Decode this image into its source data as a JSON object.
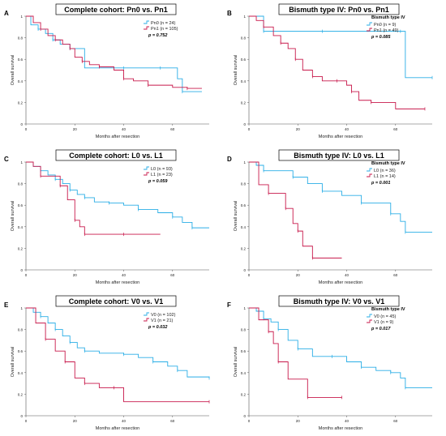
{
  "figure": {
    "ylabel": "Overall survival",
    "xlabel": "Months after resection",
    "colors": {
      "group0": "#2aaee6",
      "group1": "#c8194b"
    }
  },
  "chart_data": [
    {
      "type": "line",
      "panel": "A",
      "title": "Complete cohort: Pn0 vs. Pn1",
      "legend_title": "",
      "xlabel": "Months after resection",
      "ylabel": "Overall survival",
      "xlim": [
        0,
        75
      ],
      "ylim": [
        0,
        1.0
      ],
      "xticks": [
        0,
        20,
        40,
        60
      ],
      "yticks": [
        0.0,
        0.2,
        0.4,
        0.6,
        0.8,
        1.0
      ],
      "p_value": "p = 0.752",
      "series": [
        {
          "name": "Pn0 (n = 24)",
          "color": "#2aaee6",
          "x": [
            0,
            2,
            5,
            8,
            11,
            14,
            18,
            24,
            40,
            48,
            55,
            62,
            64,
            72
          ],
          "y": [
            1.0,
            0.92,
            0.88,
            0.84,
            0.78,
            0.74,
            0.7,
            0.52,
            0.52,
            0.52,
            0.52,
            0.42,
            0.3,
            0.3
          ]
        },
        {
          "name": "Pn1 (n = 105)",
          "color": "#c8194b",
          "x": [
            0,
            3,
            6,
            9,
            12,
            15,
            18,
            20,
            23,
            26,
            30,
            36,
            40,
            44,
            50,
            60,
            66,
            72
          ],
          "y": [
            1.0,
            0.94,
            0.88,
            0.82,
            0.78,
            0.74,
            0.7,
            0.62,
            0.58,
            0.55,
            0.53,
            0.5,
            0.42,
            0.4,
            0.36,
            0.34,
            0.33,
            0.33
          ]
        }
      ]
    },
    {
      "type": "line",
      "panel": "B",
      "title": "Bismuth type IV: Pn0 vs. Pn1",
      "legend_title": "Bismuth type IV",
      "xlabel": "Months after resection",
      "ylabel": "Overall survival",
      "xlim": [
        0,
        75
      ],
      "ylim": [
        0,
        1.0
      ],
      "xticks": [
        0,
        20,
        40,
        60
      ],
      "yticks": [
        0.0,
        0.2,
        0.4,
        0.6,
        0.8,
        1.0
      ],
      "p_value": "p = 0.085",
      "series": [
        {
          "name": "Pn0 (n = 9)",
          "color": "#2aaee6",
          "x": [
            0,
            3,
            6,
            10,
            30,
            50,
            62,
            64,
            75
          ],
          "y": [
            1.0,
            1.0,
            0.86,
            0.86,
            0.86,
            0.86,
            0.86,
            0.43,
            0.43
          ]
        },
        {
          "name": "Pn1 (n = 49)",
          "color": "#c8194b",
          "x": [
            0,
            3,
            6,
            10,
            13,
            16,
            19,
            22,
            26,
            30,
            36,
            40,
            42,
            45,
            50,
            60,
            72
          ],
          "y": [
            1.0,
            0.96,
            0.9,
            0.82,
            0.75,
            0.7,
            0.6,
            0.5,
            0.44,
            0.4,
            0.4,
            0.36,
            0.3,
            0.22,
            0.2,
            0.14,
            0.14
          ]
        }
      ]
    },
    {
      "type": "line",
      "panel": "C",
      "title": "Complete cohort: L0 vs. L1",
      "legend_title": "",
      "xlabel": "Months after resection",
      "ylabel": "Overall survival",
      "xlim": [
        0,
        75
      ],
      "ylim": [
        0,
        1.0
      ],
      "xticks": [
        0,
        20,
        40,
        60
      ],
      "yticks": [
        0.0,
        0.2,
        0.4,
        0.6,
        0.8,
        1.0
      ],
      "p_value": "p = 0.059",
      "series": [
        {
          "name": "L0 (n = 93)",
          "color": "#2aaee6",
          "x": [
            0,
            3,
            6,
            9,
            12,
            15,
            18,
            21,
            24,
            28,
            34,
            40,
            46,
            54,
            60,
            64,
            68,
            75
          ],
          "y": [
            1.0,
            0.96,
            0.92,
            0.88,
            0.84,
            0.8,
            0.74,
            0.7,
            0.67,
            0.63,
            0.62,
            0.6,
            0.56,
            0.53,
            0.49,
            0.44,
            0.39,
            0.39
          ]
        },
        {
          "name": "L1 (n = 23)",
          "color": "#c8194b",
          "x": [
            0,
            3,
            6,
            10,
            14,
            17,
            20,
            22,
            24,
            30,
            40,
            55
          ],
          "y": [
            1.0,
            0.96,
            0.87,
            0.87,
            0.78,
            0.65,
            0.46,
            0.4,
            0.33,
            0.33,
            0.33,
            0.33
          ]
        }
      ]
    },
    {
      "type": "line",
      "panel": "D",
      "title": "Bismuth type IV: L0 vs. L1",
      "legend_title": "Bismuth type IV",
      "xlabel": "Months after resection",
      "ylabel": "Overall survival",
      "xlim": [
        0,
        75
      ],
      "ylim": [
        0,
        1.0
      ],
      "xticks": [
        0,
        20,
        40,
        60
      ],
      "yticks": [
        0.0,
        0.2,
        0.4,
        0.6,
        0.8,
        1.0
      ],
      "p_value": "p = 0.001",
      "series": [
        {
          "name": "L0 (n = 36)",
          "color": "#2aaee6",
          "x": [
            0,
            3,
            6,
            12,
            18,
            24,
            30,
            38,
            46,
            54,
            58,
            62,
            64,
            75
          ],
          "y": [
            1.0,
            0.97,
            0.92,
            0.92,
            0.86,
            0.8,
            0.73,
            0.69,
            0.62,
            0.62,
            0.52,
            0.45,
            0.35,
            0.35
          ]
        },
        {
          "name": "L1 (n = 14)",
          "color": "#c8194b",
          "x": [
            0,
            4,
            8,
            12,
            15,
            18,
            20,
            22,
            26,
            38
          ],
          "y": [
            1.0,
            0.79,
            0.71,
            0.71,
            0.57,
            0.43,
            0.36,
            0.22,
            0.11,
            0.11
          ]
        }
      ]
    },
    {
      "type": "line",
      "panel": "E",
      "title": "Complete cohort: V0 vs. V1",
      "legend_title": "",
      "xlabel": "Months after resection",
      "ylabel": "Overall survival",
      "xlim": [
        0,
        75
      ],
      "ylim": [
        0,
        1.0
      ],
      "xticks": [
        0,
        20,
        40,
        60
      ],
      "yticks": [
        0.0,
        0.2,
        0.4,
        0.6,
        0.8,
        1.0
      ],
      "p_value": "p = 0.032",
      "series": [
        {
          "name": "V0 (n = 102)",
          "color": "#2aaee6",
          "x": [
            0,
            3,
            6,
            9,
            12,
            15,
            18,
            21,
            24,
            30,
            40,
            46,
            52,
            58,
            62,
            66,
            75
          ],
          "y": [
            1.0,
            0.96,
            0.92,
            0.86,
            0.8,
            0.74,
            0.68,
            0.63,
            0.6,
            0.58,
            0.57,
            0.54,
            0.5,
            0.46,
            0.42,
            0.36,
            0.35
          ]
        },
        {
          "name": "V1 (n = 21)",
          "color": "#c8194b",
          "x": [
            0,
            4,
            8,
            12,
            16,
            20,
            24,
            30,
            36,
            40,
            75
          ],
          "y": [
            1.0,
            0.86,
            0.71,
            0.6,
            0.5,
            0.35,
            0.3,
            0.26,
            0.26,
            0.13,
            0.13
          ]
        }
      ]
    },
    {
      "type": "line",
      "panel": "F",
      "title": "Bismuth type IV: V0 vs. V1",
      "legend_title": "Bismuth type IV",
      "xlabel": "Months after resection",
      "ylabel": "Overall survival",
      "xlim": [
        0,
        75
      ],
      "ylim": [
        0,
        1.0
      ],
      "xticks": [
        0,
        20,
        40,
        60
      ],
      "yticks": [
        0.0,
        0.2,
        0.4,
        0.6,
        0.8,
        1.0
      ],
      "p_value": "p = 0.017",
      "series": [
        {
          "name": "V0 (n = 45)",
          "color": "#2aaee6",
          "x": [
            0,
            3,
            6,
            9,
            12,
            16,
            20,
            26,
            34,
            40,
            46,
            52,
            58,
            62,
            64,
            75
          ],
          "y": [
            1.0,
            0.97,
            0.9,
            0.87,
            0.8,
            0.7,
            0.62,
            0.55,
            0.55,
            0.5,
            0.45,
            0.42,
            0.4,
            0.35,
            0.26,
            0.26
          ]
        },
        {
          "name": "V1 (n = 9)",
          "color": "#c8194b",
          "x": [
            0,
            4,
            8,
            10,
            12,
            16,
            24,
            32,
            38
          ],
          "y": [
            1.0,
            0.89,
            0.78,
            0.67,
            0.5,
            0.34,
            0.17,
            0.17,
            0.17
          ]
        }
      ]
    }
  ]
}
